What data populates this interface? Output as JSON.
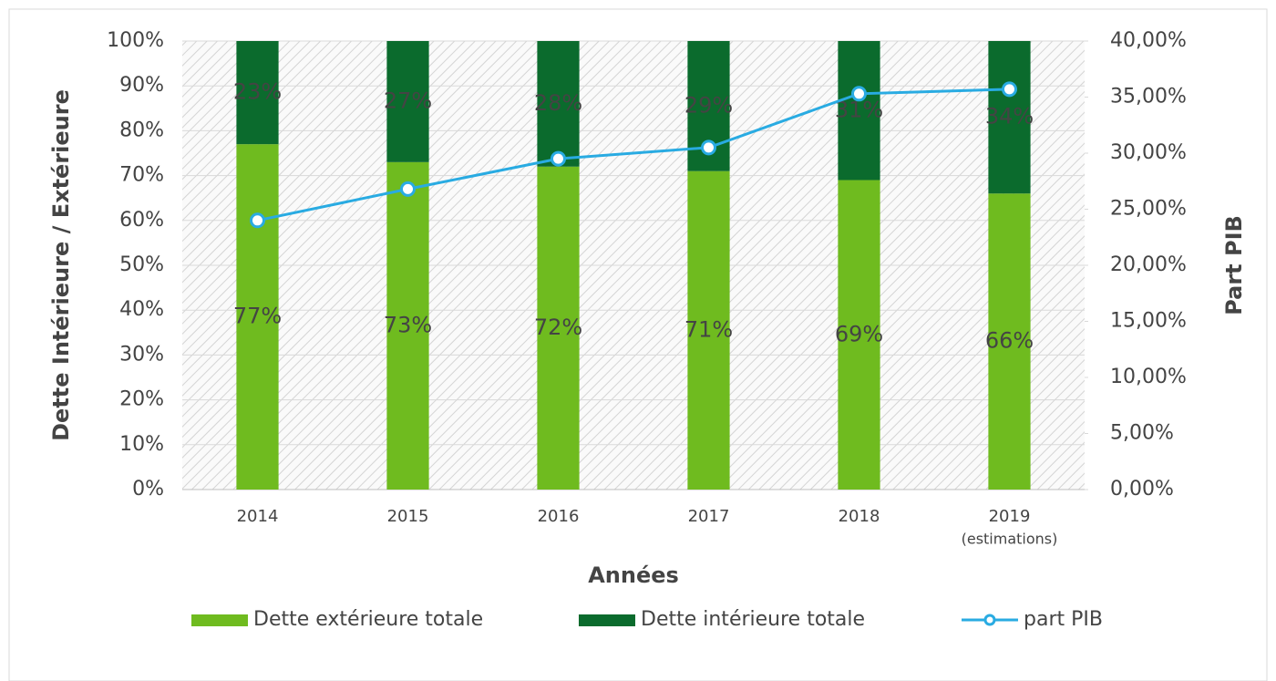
{
  "chart_data": {
    "type": "bar",
    "categories": [
      "2014",
      "2015",
      "2016",
      "2017",
      "2018",
      "2019"
    ],
    "x_annotation": "(estimations)",
    "xlabel": "Années",
    "ylabel": "Dette Intérieure / Extérieure",
    "y2label": "Part PIB",
    "stacked": true,
    "grid": true,
    "legend": "bottom",
    "ylim": [
      0,
      100
    ],
    "yticks": [
      {
        "value": 0,
        "label": "0%"
      },
      {
        "value": 10,
        "label": "10%"
      },
      {
        "value": 20,
        "label": "20%"
      },
      {
        "value": 30,
        "label": "30%"
      },
      {
        "value": 40,
        "label": "40%"
      },
      {
        "value": 50,
        "label": "50%"
      },
      {
        "value": 60,
        "label": "60%"
      },
      {
        "value": 70,
        "label": "70%"
      },
      {
        "value": 80,
        "label": "80%"
      },
      {
        "value": 90,
        "label": "90%"
      },
      {
        "value": 100,
        "label": "100%"
      }
    ],
    "y2lim": [
      0,
      40
    ],
    "y2ticks": [
      {
        "value": 0,
        "label": "0,00%"
      },
      {
        "value": 5,
        "label": "5,00%"
      },
      {
        "value": 10,
        "label": "10,00%"
      },
      {
        "value": 15,
        "label": "15,00%"
      },
      {
        "value": 20,
        "label": "20,00%"
      },
      {
        "value": 25,
        "label": "25,00%"
      },
      {
        "value": 30,
        "label": "30,00%"
      },
      {
        "value": 35,
        "label": "35,00%"
      },
      {
        "value": 40,
        "label": "40,00%"
      }
    ],
    "series": [
      {
        "name": "Dette extérieure totale",
        "color": "#6fbb1f",
        "type": "bar",
        "values": [
          77,
          73,
          72,
          71,
          69,
          66
        ],
        "value_labels": [
          "77%",
          "73%",
          "72%",
          "71%",
          "69%",
          "66%"
        ]
      },
      {
        "name": "Dette intérieure totale",
        "color": "#0b6b2d",
        "type": "bar",
        "values": [
          23,
          27,
          28,
          29,
          31,
          34
        ],
        "value_labels": [
          "23%",
          "27%",
          "28%",
          "29%",
          "31%",
          "34%"
        ]
      },
      {
        "name": "part PIB",
        "color": "#29abe2",
        "type": "line",
        "axis": "y2",
        "values": [
          24.0,
          26.8,
          29.5,
          30.5,
          35.3,
          35.7
        ]
      }
    ]
  }
}
